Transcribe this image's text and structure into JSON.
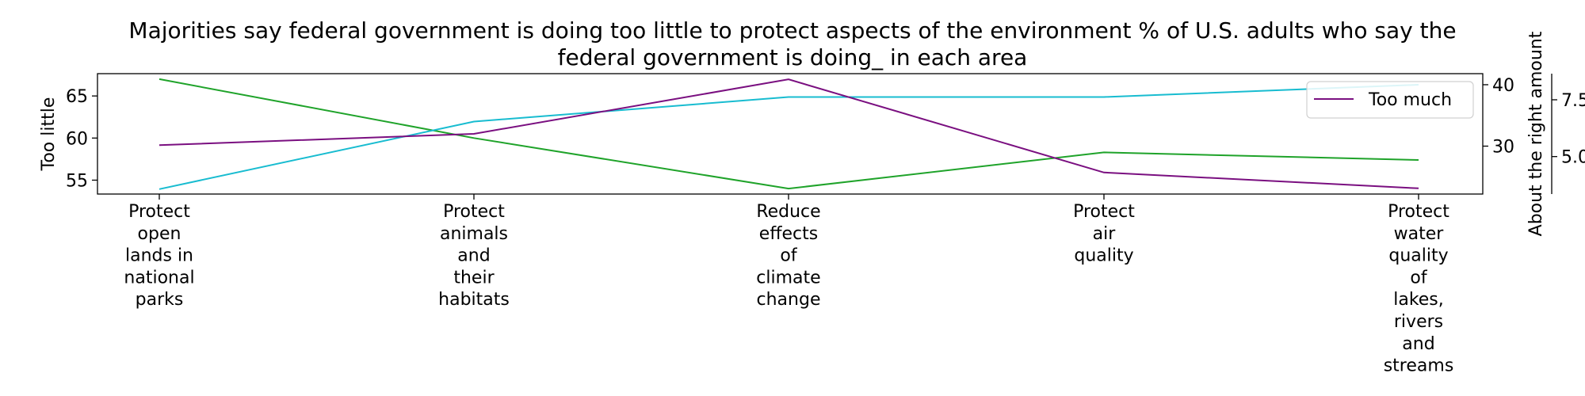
{
  "chart_data": {
    "type": "line",
    "title_line1": "Majorities say federal government is doing too little to protect aspects of the environment % of U.S. adults who say the",
    "title_line2": "federal government is doing_ in each area",
    "categories": [
      [
        "Protect",
        "open",
        "lands in",
        "national",
        "parks"
      ],
      [
        "Protect",
        "animals",
        "and",
        "their",
        "habitats"
      ],
      [
        "Reduce",
        "effects",
        "of",
        "climate",
        "change"
      ],
      [
        "Protect",
        "air",
        "quality"
      ],
      [
        "Protect",
        "water",
        "quality",
        "of",
        "lakes,",
        "rivers",
        "and",
        "streams"
      ]
    ],
    "axes": {
      "left": {
        "label": "Too little",
        "ticks": [
          55,
          60,
          65
        ],
        "range": [
          53.35,
          67.65
        ]
      },
      "right1": {
        "label": "About the right amount",
        "ticks": [
          30,
          40
        ],
        "range": [
          22.2,
          41.8
        ]
      },
      "right2": {
        "label": "",
        "ticks_text": [
          "5.0",
          "7.5"
        ],
        "ticks": [
          5.0,
          7.5
        ],
        "range": [
          3.35,
          8.65
        ]
      }
    },
    "series": [
      {
        "axis": "left",
        "color": "#1fa32a",
        "values": [
          67,
          60,
          54,
          58.3,
          57.4
        ]
      },
      {
        "axis": "right1",
        "color": "#18bcd0",
        "values": [
          23,
          34,
          38,
          38,
          40
        ]
      },
      {
        "name": "Too much",
        "axis": "right2",
        "color": "#7a0f80",
        "values": [
          5.5,
          6.0,
          8.4,
          4.3,
          3.6
        ]
      }
    ],
    "legend": {
      "entries": [
        "Too much"
      ],
      "placement": "top-right"
    }
  }
}
